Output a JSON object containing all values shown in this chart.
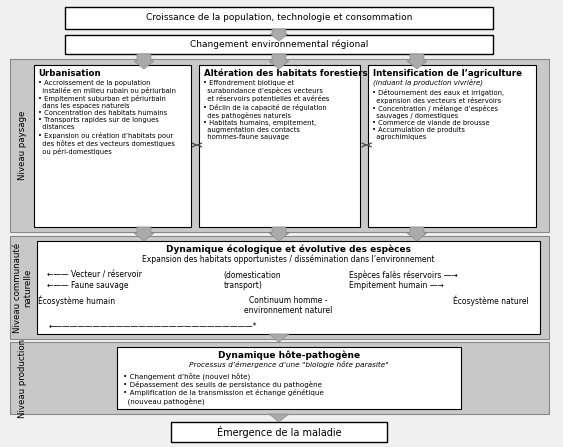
{
  "bg_color": "#f0f0f0",
  "white": "#ffffff",
  "dark_gray": "#aaaaaa",
  "light_gray": "#d8d8d8",
  "text_color": "#000000",
  "title": "Croissance de la population, technologie et consommation",
  "box2": "Changement environnemental régional",
  "box_urb_title": "Urbanisation",
  "box_urb_text": "• Accroissement de la population\n  installée en milieu rubain ou périurbain\n• Empitement suburban et périurbain\n  dans les espaces naturels\n• Concentration des habitats humains\n• Transports rapides sur de longues\n  distances\n• Expansion ou création d’habitats pour\n  des hôtes et des vecteurs domestiques\n  ou péri-domestiques",
  "box_alt_title": "Altération des habitats forestiers",
  "box_alt_text": "• Effondrement biotique et\n  surabondance d’espèces vecteurs\n  et réservoirs potentielles et avérées\n• Déclin de la capacité de régulation\n  des pathogènes naturels\n• Habitats humains, empitement,\n  augmentation des contacts\n  hommes-faune sauvage",
  "box_int_title": "Intensification de l’agriculture",
  "box_int_subtitle": "(induant la production vivrière)",
  "box_int_text": "• Détournement des eaux et irrigation,\n  expansion des vecteurs et réservoirs\n• Concentration / mélange d’espèces\n  sauvages / domestiques\n• Commerce de viande de brousse\n• Accumulation de produits\n  agrochimiques",
  "box_dyn_title": "Dynamique écologique et évolutive des espèces",
  "box_dyn_subtitle": "Expansion des habitats opportunistes / dissémination dans l’environnement",
  "box_dyn_left1": "←—— Vecteur / réservoir",
  "box_dyn_left2": "←—— Faune sauvage",
  "box_dyn_mid1": "(domestication",
  "box_dyn_mid2": "transport)",
  "box_dyn_right1": "Espèces falès réservoirs —→",
  "box_dyn_right2": "Empitement humain —→",
  "box_dyn_eco_left": "Écosystème humain",
  "box_dyn_continuum": "Continuum homme -\nenvironnement naturel",
  "box_dyn_eco_right": "Écosystème naturel",
  "box_dyn_arrow": "←——————————————————————————*",
  "box_host_title": "Dynamique hôte-pathogène",
  "box_host_subtitle": "Processus d’émergence d’une \"biologie hôte parasite\"",
  "box_host_text": "• Changement d’hôte (nouvel hôte)\n• Dépassement des seuils de persistance du pathogène\n• Amplification de la transmission et échange génétique\n  (nouveau pathogène)",
  "box_last": "Émergence de la maladie",
  "niveau_paysage": "Niveau paysage",
  "niveau_communaute": "Niveau communauté\nnaturelle",
  "niveau_production": "Niveau production"
}
